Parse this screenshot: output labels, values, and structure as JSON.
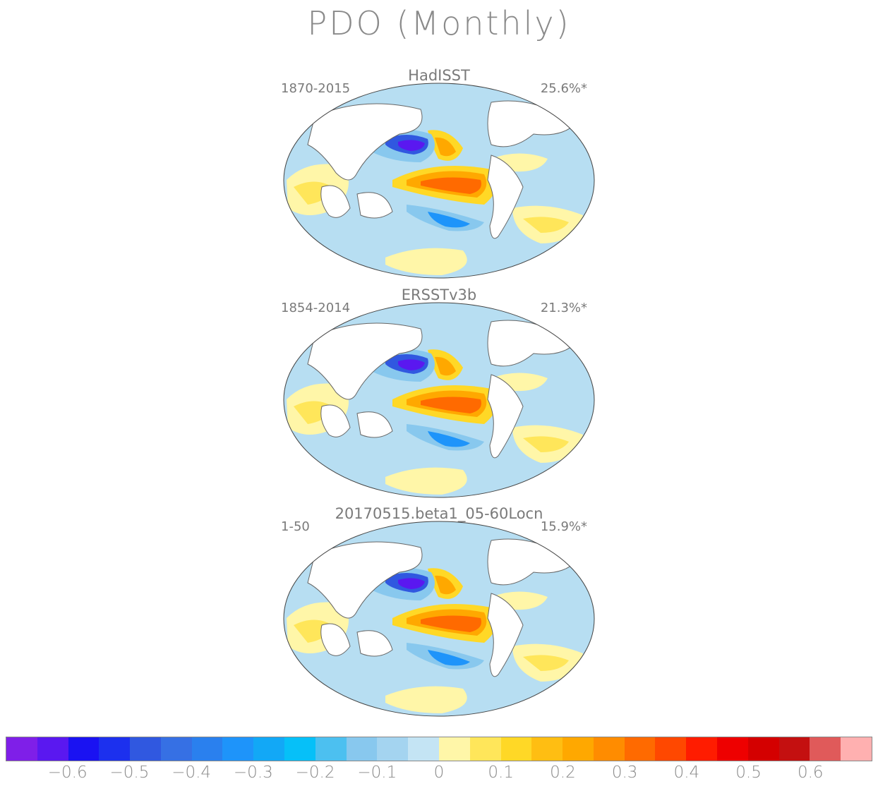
{
  "title": "PDO (Monthly)",
  "panels": [
    {
      "name": "HadISST",
      "period": "1870-2015",
      "pct": "25.6%*"
    },
    {
      "name": "ERSSTv3b",
      "period": "1854-2014",
      "pct": "21.3%*"
    },
    {
      "name": "20170515.beta1_05-60Locn",
      "period": "1-50",
      "pct": "15.9%*"
    }
  ],
  "colorbar": {
    "colors": [
      "#7f1fe8",
      "#5a18f0",
      "#1a12f2",
      "#1c30ee",
      "#3058e0",
      "#3670e4",
      "#2a80ee",
      "#1e94fa",
      "#12a8f6",
      "#06c0f8",
      "#4cc0f0",
      "#88c8ee",
      "#a4d4f0",
      "#c4e4f4",
      "#fff6a8",
      "#ffe65a",
      "#ffd826",
      "#ffbe12",
      "#ffa800",
      "#ff8c00",
      "#ff6a00",
      "#ff4800",
      "#ff1c00",
      "#ee0000",
      "#d40000",
      "#c41010",
      "#e05a5a",
      "#ffb0b0"
    ],
    "ticks": [
      "−0.6",
      "−0.5",
      "−0.4",
      "−0.3",
      "−0.2",
      "−0.1",
      "0",
      "0.1",
      "0.2",
      "0.3",
      "0.4",
      "0.5",
      "0.6"
    ]
  }
}
